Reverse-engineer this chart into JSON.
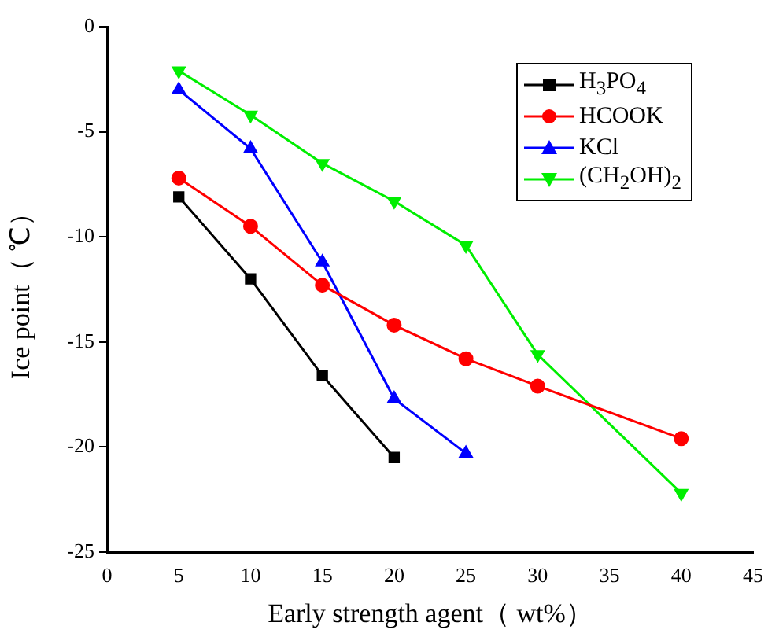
{
  "chart_data": {
    "type": "line",
    "xlabel": "Early strength agent（ wt%）",
    "ylabel": "Ice point（ ℃）",
    "xlim": [
      0,
      45
    ],
    "xticks": [
      0,
      5,
      10,
      15,
      20,
      25,
      30,
      35,
      40,
      45
    ],
    "ylim": [
      -25,
      0
    ],
    "yticks": [
      -25,
      -20,
      -15,
      -10,
      -5,
      0
    ],
    "grid": false,
    "legend": "top right",
    "line_style": "solid",
    "series": [
      {
        "name": "H$_{3}$PO$_{4}$",
        "color": "#000000",
        "marker": "square",
        "x": [
          5,
          10,
          15,
          20
        ],
        "values": [
          -8.1,
          -12.0,
          -16.6,
          -20.5
        ]
      },
      {
        "name": "HCOOK",
        "color": "#ff0000",
        "marker": "circle",
        "x": [
          5,
          10,
          15,
          20,
          25,
          30,
          40
        ],
        "values": [
          -7.2,
          -9.5,
          -12.3,
          -14.2,
          -15.8,
          -17.1,
          -19.6
        ]
      },
      {
        "name": "KCl",
        "color": "#0000ff",
        "marker": "triangle",
        "x": [
          5,
          10,
          15,
          20,
          25
        ],
        "values": [
          -3.0,
          -5.8,
          -11.2,
          -17.7,
          -20.3
        ]
      },
      {
        "name": "(CH$_{2}$OH)$_{2}$",
        "color": "#00ee00",
        "marker": "triangle_down",
        "x": [
          5,
          10,
          15,
          20,
          25,
          30,
          40
        ],
        "values": [
          -2.1,
          -4.2,
          -6.5,
          -8.3,
          -10.4,
          -15.6,
          -22.2
        ]
      }
    ]
  }
}
